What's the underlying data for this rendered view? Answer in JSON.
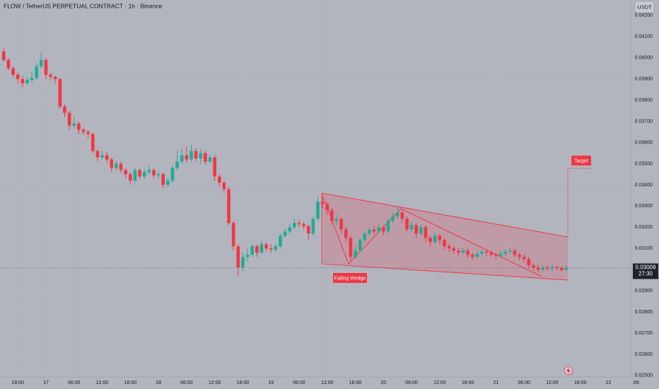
{
  "chart_data": {
    "type": "candlestick",
    "title": "FLOW / TetherUS PERPETUAL CONTRACT · 1h · Binance",
    "currency": "USDT",
    "up_color": "#22ab94",
    "down_color": "#f23645",
    "ylim": [
      0.02493,
      0.04273
    ],
    "yticks": [
      {
        "value": 0.042,
        "label": "0.04200"
      },
      {
        "value": 0.041,
        "label": "0.04100"
      },
      {
        "value": 0.04,
        "label": "0.04000"
      },
      {
        "value": 0.039,
        "label": "0.03900"
      },
      {
        "value": 0.038,
        "label": "0.03800"
      },
      {
        "value": 0.037,
        "label": "0.03700"
      },
      {
        "value": 0.036,
        "label": "0.03600"
      },
      {
        "value": 0.035,
        "label": "0.03500"
      },
      {
        "value": 0.034,
        "label": "0.03400"
      },
      {
        "value": 0.033,
        "label": "0.03300"
      },
      {
        "value": 0.032,
        "label": "0.03200"
      },
      {
        "value": 0.031,
        "label": "0.03100"
      },
      {
        "value": 0.03,
        "label": "0.03000"
      },
      {
        "value": 0.029,
        "label": "0.02900"
      },
      {
        "value": 0.028,
        "label": "0.02800"
      },
      {
        "value": 0.027,
        "label": "0.02700"
      },
      {
        "value": 0.026,
        "label": "0.02600"
      },
      {
        "value": 0.025,
        "label": "0.02500"
      }
    ],
    "xlim": [
      -0.8,
      133.9
    ],
    "xticks": [
      {
        "value": 3,
        "label": "18:00"
      },
      {
        "value": 9,
        "label": "17"
      },
      {
        "value": 15,
        "label": "06:00"
      },
      {
        "value": 21,
        "label": "12:00"
      },
      {
        "value": 27,
        "label": "18:00"
      },
      {
        "value": 33,
        "label": "18"
      },
      {
        "value": 39,
        "label": "06:00"
      },
      {
        "value": 45,
        "label": "12:00"
      },
      {
        "value": 51,
        "label": "18:00"
      },
      {
        "value": 57,
        "label": "19"
      },
      {
        "value": 63,
        "label": "06:00"
      },
      {
        "value": 69,
        "label": "12:00"
      },
      {
        "value": 75,
        "label": "18:00"
      },
      {
        "value": 81,
        "label": "20"
      },
      {
        "value": 87,
        "label": "06:00"
      },
      {
        "value": 93,
        "label": "12:00"
      },
      {
        "value": 99,
        "label": "18:00"
      },
      {
        "value": 105,
        "label": "21"
      },
      {
        "value": 111,
        "label": "06:00"
      },
      {
        "value": 117,
        "label": "12:00"
      },
      {
        "value": 123,
        "label": "18:00"
      },
      {
        "value": 129,
        "label": "22"
      },
      {
        "value": 135,
        "label": "06:"
      }
    ],
    "last_price": {
      "value": 0.03009,
      "label": "0.03009"
    },
    "countdown": "27:30",
    "annotations": [
      "Falling Wedge",
      "Target"
    ],
    "candles": [
      [
        0.0403,
        0.04045,
        0.0398,
        0.0399
      ],
      [
        0.0399,
        0.04,
        0.0394,
        0.0395
      ],
      [
        0.0395,
        0.0396,
        0.03905,
        0.0392
      ],
      [
        0.0392,
        0.0393,
        0.0388,
        0.039
      ],
      [
        0.039,
        0.03915,
        0.0386,
        0.0388
      ],
      [
        0.0388,
        0.0391,
        0.0387,
        0.03895
      ],
      [
        0.03895,
        0.0393,
        0.03885,
        0.03905
      ],
      [
        0.03905,
        0.03975,
        0.03895,
        0.0396
      ],
      [
        0.0396,
        0.0403,
        0.0395,
        0.0399
      ],
      [
        0.0399,
        0.04,
        0.039,
        0.0392
      ],
      [
        0.0392,
        0.0393,
        0.03895,
        0.0391
      ],
      [
        0.0391,
        0.03915,
        0.0388,
        0.039
      ],
      [
        0.039,
        0.03905,
        0.0376,
        0.0377
      ],
      [
        0.0377,
        0.0378,
        0.0372,
        0.0374
      ],
      [
        0.0374,
        0.0375,
        0.0366,
        0.0368
      ],
      [
        0.0368,
        0.0372,
        0.0367,
        0.0369
      ],
      [
        0.0369,
        0.037,
        0.0364,
        0.0366
      ],
      [
        0.0366,
        0.0367,
        0.03635,
        0.0365
      ],
      [
        0.0365,
        0.0366,
        0.0362,
        0.0364
      ],
      [
        0.0364,
        0.0365,
        0.0355,
        0.0356
      ],
      [
        0.0356,
        0.0357,
        0.0351,
        0.0353
      ],
      [
        0.0353,
        0.0356,
        0.0352,
        0.0354
      ],
      [
        0.0354,
        0.03555,
        0.03505,
        0.0352
      ],
      [
        0.0352,
        0.0353,
        0.0346,
        0.0348
      ],
      [
        0.0348,
        0.03515,
        0.0347,
        0.035
      ],
      [
        0.035,
        0.0351,
        0.03455,
        0.0347
      ],
      [
        0.0347,
        0.0348,
        0.0343,
        0.0345
      ],
      [
        0.0345,
        0.0346,
        0.034,
        0.0342
      ],
      [
        0.0342,
        0.0348,
        0.0341,
        0.0347
      ],
      [
        0.0347,
        0.0348,
        0.0343,
        0.0344
      ],
      [
        0.0344,
        0.03475,
        0.0343,
        0.0346
      ],
      [
        0.0346,
        0.0349,
        0.0345,
        0.0347
      ],
      [
        0.0347,
        0.0348,
        0.0343,
        0.03445
      ],
      [
        0.03445,
        0.03465,
        0.0343,
        0.0345
      ],
      [
        0.0345,
        0.0346,
        0.03385,
        0.034
      ],
      [
        0.034,
        0.03435,
        0.0339,
        0.0342
      ],
      [
        0.0342,
        0.0349,
        0.0341,
        0.0348
      ],
      [
        0.0348,
        0.0356,
        0.0347,
        0.0351
      ],
      [
        0.0351,
        0.0357,
        0.035,
        0.0354
      ],
      [
        0.0354,
        0.0358,
        0.03505,
        0.0352
      ],
      [
        0.0352,
        0.0359,
        0.0351,
        0.0356
      ],
      [
        0.0356,
        0.03575,
        0.0351,
        0.03525
      ],
      [
        0.03525,
        0.0357,
        0.035,
        0.0355
      ],
      [
        0.0355,
        0.0356,
        0.03495,
        0.0351
      ],
      [
        0.0351,
        0.03545,
        0.035,
        0.0353
      ],
      [
        0.0353,
        0.0354,
        0.0342,
        0.0344
      ],
      [
        0.0344,
        0.0345,
        0.0339,
        0.0341
      ],
      [
        0.0341,
        0.0342,
        0.0336,
        0.0338
      ],
      [
        0.0338,
        0.0339,
        0.0321,
        0.0322
      ],
      [
        0.0322,
        0.0323,
        0.0309,
        0.0311
      ],
      [
        0.0311,
        0.0312,
        0.0297,
        0.0301
      ],
      [
        0.0301,
        0.0308,
        0.0299,
        0.0306
      ],
      [
        0.0306,
        0.031,
        0.0304,
        0.0307
      ],
      [
        0.0307,
        0.0312,
        0.0306,
        0.0311
      ],
      [
        0.0311,
        0.0312,
        0.0306,
        0.0308
      ],
      [
        0.0308,
        0.03135,
        0.03075,
        0.0312
      ],
      [
        0.0312,
        0.0313,
        0.03085,
        0.031
      ],
      [
        0.031,
        0.0312,
        0.0308,
        0.03095
      ],
      [
        0.03095,
        0.03125,
        0.03085,
        0.0311
      ],
      [
        0.0311,
        0.0317,
        0.031,
        0.0316
      ],
      [
        0.0316,
        0.03195,
        0.0315,
        0.0318
      ],
      [
        0.0318,
        0.03215,
        0.0317,
        0.032
      ],
      [
        0.032,
        0.0324,
        0.0319,
        0.0322
      ],
      [
        0.0322,
        0.03235,
        0.032,
        0.03215
      ],
      [
        0.03215,
        0.03225,
        0.0319,
        0.03205
      ],
      [
        0.03205,
        0.03215,
        0.0314,
        0.0317
      ],
      [
        0.0317,
        0.0325,
        0.0316,
        0.0324
      ],
      [
        0.0324,
        0.03345,
        0.0323,
        0.0332
      ],
      [
        0.0332,
        0.0334,
        0.0329,
        0.0331
      ],
      [
        0.0331,
        0.0332,
        0.0326,
        0.0328
      ],
      [
        0.0328,
        0.0329,
        0.0321,
        0.0323
      ],
      [
        0.0323,
        0.0326,
        0.0321,
        0.0324
      ],
      [
        0.0324,
        0.0325,
        0.0317,
        0.0319
      ],
      [
        0.0319,
        0.032,
        0.0313,
        0.0315
      ],
      [
        0.0315,
        0.0316,
        0.0304,
        0.0306
      ],
      [
        0.0306,
        0.0311,
        0.0305,
        0.0309
      ],
      [
        0.0309,
        0.0315,
        0.0308,
        0.0314
      ],
      [
        0.0314,
        0.0318,
        0.0313,
        0.0317
      ],
      [
        0.0317,
        0.032,
        0.0316,
        0.0319
      ],
      [
        0.0319,
        0.0321,
        0.03165,
        0.0318
      ],
      [
        0.0318,
        0.03215,
        0.0317,
        0.032
      ],
      [
        0.032,
        0.0321,
        0.0316,
        0.0318
      ],
      [
        0.0318,
        0.0324,
        0.0317,
        0.0323
      ],
      [
        0.0323,
        0.0327,
        0.0322,
        0.0325
      ],
      [
        0.0325,
        0.033,
        0.0324,
        0.0327
      ],
      [
        0.0327,
        0.0328,
        0.0322,
        0.0324
      ],
      [
        0.0324,
        0.0325,
        0.0318,
        0.0319
      ],
      [
        0.0319,
        0.03225,
        0.0318,
        0.0321
      ],
      [
        0.0321,
        0.0322,
        0.0315,
        0.0317
      ],
      [
        0.0317,
        0.03215,
        0.0316,
        0.032
      ],
      [
        0.032,
        0.0321,
        0.0313,
        0.0315
      ],
      [
        0.0315,
        0.0316,
        0.0311,
        0.0313
      ],
      [
        0.0313,
        0.03175,
        0.0312,
        0.0316
      ],
      [
        0.0316,
        0.0317,
        0.0312,
        0.0314
      ],
      [
        0.0314,
        0.0315,
        0.03095,
        0.0311
      ],
      [
        0.0311,
        0.0312,
        0.03085,
        0.031
      ],
      [
        0.031,
        0.0311,
        0.03075,
        0.0309
      ],
      [
        0.0309,
        0.031,
        0.03065,
        0.0308
      ],
      [
        0.0308,
        0.03105,
        0.0307,
        0.0309
      ],
      [
        0.0309,
        0.031,
        0.03055,
        0.0307
      ],
      [
        0.0307,
        0.0308,
        0.03045,
        0.0306
      ],
      [
        0.0306,
        0.03085,
        0.0305,
        0.03075
      ],
      [
        0.03075,
        0.03095,
        0.03065,
        0.03085
      ],
      [
        0.03085,
        0.03095,
        0.03065,
        0.0308
      ],
      [
        0.0308,
        0.0309,
        0.0306,
        0.0307
      ],
      [
        0.0307,
        0.0308,
        0.0305,
        0.03065
      ],
      [
        0.03065,
        0.03085,
        0.03055,
        0.03075
      ],
      [
        0.03075,
        0.03095,
        0.03065,
        0.03085
      ],
      [
        0.03085,
        0.03105,
        0.03075,
        0.0309
      ],
      [
        0.0309,
        0.031,
        0.0306,
        0.0307
      ],
      [
        0.0307,
        0.0308,
        0.03045,
        0.0306
      ],
      [
        0.0306,
        0.0307,
        0.03035,
        0.0305
      ],
      [
        0.0305,
        0.0306,
        0.03005,
        0.0302
      ],
      [
        0.0302,
        0.0303,
        0.02995,
        0.0301
      ],
      [
        0.0301,
        0.0302,
        0.02985,
        0.03
      ],
      [
        0.03,
        0.0302,
        0.0299,
        0.0301
      ],
      [
        0.0301,
        0.0302,
        0.02995,
        0.03005
      ],
      [
        0.03005,
        0.03025,
        0.02995,
        0.03012
      ],
      [
        0.03012,
        0.0302,
        0.02998,
        0.03008
      ],
      [
        0.03008,
        0.03015,
        0.0299,
        0.02998
      ],
      [
        0.02998,
        0.0302,
        0.02995,
        0.03009
      ]
    ]
  }
}
